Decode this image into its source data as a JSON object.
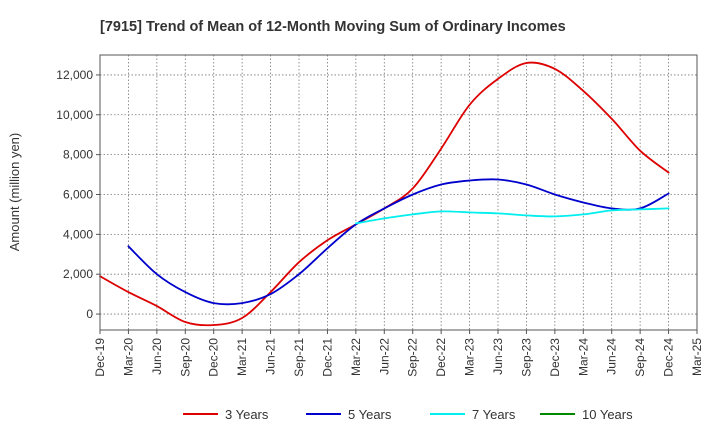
{
  "chart_data": {
    "type": "line",
    "title": "[7915]  Trend of Mean of 12-Month Moving Sum of Ordinary Incomes",
    "xlabel": "",
    "ylabel": "Amount (million yen)",
    "ylim": [
      -800,
      13000
    ],
    "yticks": [
      0,
      2000,
      4000,
      6000,
      8000,
      10000,
      12000
    ],
    "ytick_labels": [
      "0",
      "2,000",
      "4,000",
      "6,000",
      "8,000",
      "10,000",
      "12,000"
    ],
    "categories": [
      "Dec-19",
      "Mar-20",
      "Jun-20",
      "Sep-20",
      "Dec-20",
      "Mar-21",
      "Jun-21",
      "Sep-21",
      "Dec-21",
      "Mar-22",
      "Jun-22",
      "Sep-22",
      "Dec-22",
      "Mar-23",
      "Jun-23",
      "Sep-23",
      "Dec-23",
      "Mar-24",
      "Jun-24",
      "Sep-24",
      "Dec-24",
      "Mar-25"
    ],
    "grid": true,
    "legend_position": "bottom",
    "series": [
      {
        "name": "3 Years",
        "color": "#dd0000",
        "values": [
          1900,
          1100,
          400,
          -400,
          -550,
          -200,
          1100,
          2600,
          3700,
          4500,
          5300,
          6300,
          8300,
          10500,
          11800,
          12600,
          12300,
          11200,
          9800,
          8200,
          7100,
          null
        ]
      },
      {
        "name": "5 Years",
        "color": "#0000cc",
        "values": [
          null,
          3400,
          2000,
          1100,
          550,
          550,
          1000,
          2000,
          3300,
          4500,
          5300,
          6000,
          6500,
          6700,
          6750,
          6500,
          6000,
          5600,
          5300,
          5300,
          6050,
          null
        ]
      },
      {
        "name": "7 Years",
        "color": "#00eeee",
        "values": [
          null,
          null,
          null,
          null,
          null,
          null,
          null,
          null,
          null,
          4550,
          4800,
          5000,
          5150,
          5100,
          5050,
          4950,
          4900,
          5000,
          5200,
          5250,
          5300,
          null
        ]
      },
      {
        "name": "10 Years",
        "color": "#008800",
        "values": [
          null,
          null,
          null,
          null,
          null,
          null,
          null,
          null,
          null,
          null,
          null,
          null,
          null,
          null,
          null,
          null,
          null,
          null,
          null,
          null,
          null,
          null
        ]
      }
    ]
  }
}
